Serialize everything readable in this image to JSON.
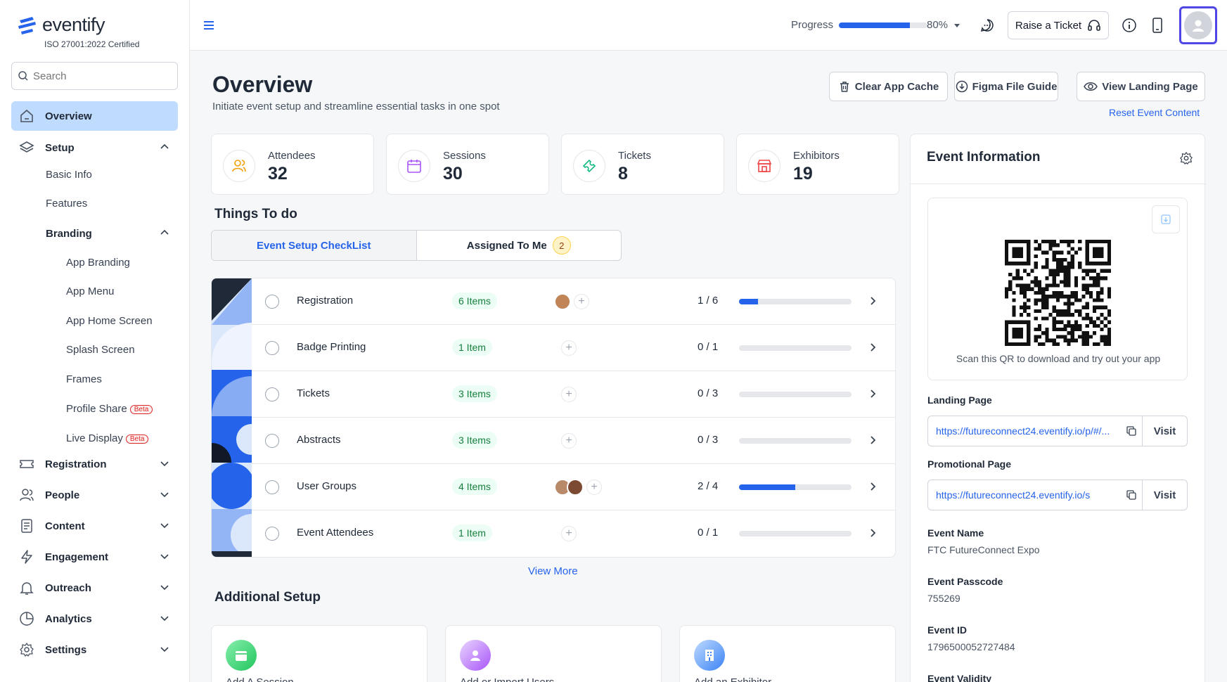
{
  "brand": {
    "name": "eventify",
    "certification": "ISO 27001:2022 Certified",
    "accent": "#2563eb"
  },
  "search": {
    "placeholder": "Search"
  },
  "sidebar": {
    "items": [
      {
        "label": "Overview",
        "icon": "home-icon",
        "active": true
      },
      {
        "label": "Setup",
        "icon": "layers-icon",
        "expanded": true
      },
      {
        "label": "Registration",
        "icon": "ticket-icon"
      },
      {
        "label": "People",
        "icon": "users-icon"
      },
      {
        "label": "Content",
        "icon": "document-icon"
      },
      {
        "label": "Engagement",
        "icon": "bolt-icon"
      },
      {
        "label": "Outreach",
        "icon": "bell-icon"
      },
      {
        "label": "Analytics",
        "icon": "pie-chart-icon"
      },
      {
        "label": "Settings",
        "icon": "gear-icon"
      }
    ],
    "setup_children": [
      "Basic Info",
      "Features",
      "Branding"
    ],
    "branding_children": [
      "App Branding",
      "App Menu",
      "App Home Screen",
      "Splash Screen",
      "Frames",
      "Profile Share",
      "Live Display"
    ],
    "beta_label": "Beta"
  },
  "topbar": {
    "progress_label": "Progress",
    "progress_value": 80,
    "progress_text": "80%",
    "raise_ticket": "Raise a Ticket"
  },
  "header": {
    "title": "Overview",
    "subtitle": "Initiate event setup and streamline essential tasks in one spot",
    "buttons": [
      "Clear App Cache",
      "Figma File Guide",
      "View Landing Page"
    ],
    "reset_link": "Reset Event Content"
  },
  "stats": [
    {
      "label": "Attendees",
      "value": "32",
      "icon": "users-icon",
      "color": "#f59e0b"
    },
    {
      "label": "Sessions",
      "value": "30",
      "icon": "calendar-icon",
      "color": "#a855f7"
    },
    {
      "label": "Tickets",
      "value": "8",
      "icon": "ticket-icon",
      "color": "#10b981"
    },
    {
      "label": "Exhibitors",
      "value": "19",
      "icon": "store-icon",
      "color": "#ef4444"
    }
  ],
  "things_to_do": {
    "title": "Things To do",
    "tabs": [
      {
        "label": "Event Setup CheckList",
        "active": true
      },
      {
        "label": "Assigned To Me",
        "count": "2"
      }
    ],
    "rows": [
      {
        "name": "Registration",
        "items": "6 Items",
        "progress": "1 / 6",
        "fraction": 0.1667,
        "assignees": 1
      },
      {
        "name": "Badge Printing",
        "items": "1 Item",
        "progress": "0 / 1",
        "fraction": 0,
        "assignees": 0
      },
      {
        "name": "Tickets",
        "items": "3 Items",
        "progress": "0 / 3",
        "fraction": 0,
        "assignees": 0
      },
      {
        "name": "Abstracts",
        "items": "3 Items",
        "progress": "0 / 3",
        "fraction": 0,
        "assignees": 0
      },
      {
        "name": "User Groups",
        "items": "4 Items",
        "progress": "2 / 4",
        "fraction": 0.5,
        "assignees": 2
      },
      {
        "name": "Event Attendees",
        "items": "1 Item",
        "progress": "0 / 1",
        "fraction": 0,
        "assignees": 0
      }
    ],
    "view_more": "View More"
  },
  "additional_setup": {
    "title": "Additional Setup",
    "cards": [
      {
        "label": "Add A Session",
        "icon": "calendar-icon",
        "color": "#22c55e"
      },
      {
        "label": "Add or Import Users",
        "icon": "user-icon",
        "color": "#a855f7"
      },
      {
        "label": "Add an Exhibitor",
        "icon": "building-icon",
        "color": "#3b82f6"
      }
    ]
  },
  "event_info": {
    "title": "Event Information",
    "qr_caption": "Scan this QR to download and try out your app",
    "landing_label": "Landing Page",
    "landing_url": "https://futureconnect24.eventify.io/p/#/...",
    "promo_label": "Promotional Page",
    "promo_url": "https://futureconnect24.eventify.io/s",
    "visit_label": "Visit",
    "name_label": "Event Name",
    "name_value": "FTC FutureConnect Expo",
    "passcode_label": "Event Passcode",
    "passcode_value": "755269",
    "id_label": "Event ID",
    "id_value": "1796500052727484",
    "validity_label": "Event Validity"
  }
}
